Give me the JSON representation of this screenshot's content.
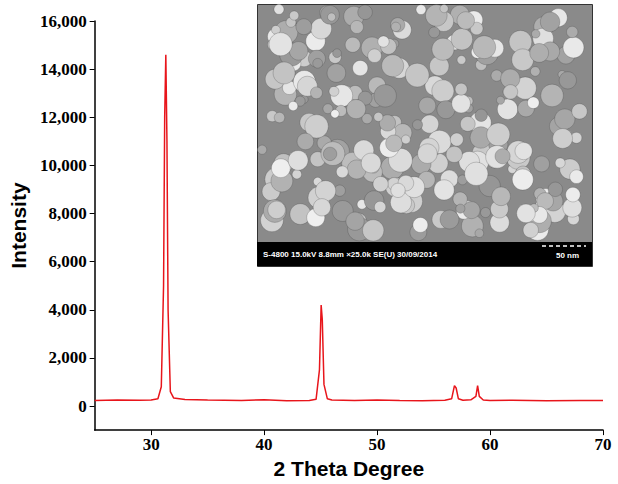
{
  "chart_data": {
    "type": "line",
    "x_label": "2 Theta Degree",
    "y_label": "Intensity",
    "color": "#e8151b",
    "x": [
      25,
      27,
      29,
      30,
      30.6,
      30.9,
      31.1,
      31.2,
      31.3,
      31.4,
      31.5,
      31.7,
      32,
      33,
      35,
      38,
      40,
      42,
      44,
      44.6,
      44.9,
      45.05,
      45.15,
      45.3,
      45.6,
      46,
      48,
      50,
      52,
      54,
      56,
      56.6,
      56.85,
      57.0,
      57.2,
      57.6,
      58.3,
      58.75,
      58.9,
      59.05,
      59.4,
      60,
      62,
      65,
      68,
      70
    ],
    "values": [
      230,
      250,
      240,
      250,
      300,
      800,
      5000,
      12000,
      14600,
      11000,
      4000,
      600,
      330,
      270,
      250,
      230,
      260,
      220,
      230,
      280,
      1500,
      4200,
      3600,
      900,
      300,
      250,
      230,
      250,
      230,
      220,
      240,
      300,
      850,
      750,
      300,
      240,
      260,
      400,
      850,
      400,
      250,
      230,
      240,
      220,
      230,
      230
    ],
    "xlim": [
      25,
      70
    ],
    "xticks": [
      30,
      40,
      50,
      60,
      70
    ],
    "ylim": [
      -1000,
      16000
    ],
    "yticks": [
      0,
      2000,
      4000,
      6000,
      8000,
      10000,
      12000,
      14000,
      16000
    ],
    "grid": false,
    "inset": {
      "caption": "S-4800 15.0kV 8.8mm ×25.0k SE(U) 30/09/2014",
      "scale_bar": "50 nm"
    }
  }
}
